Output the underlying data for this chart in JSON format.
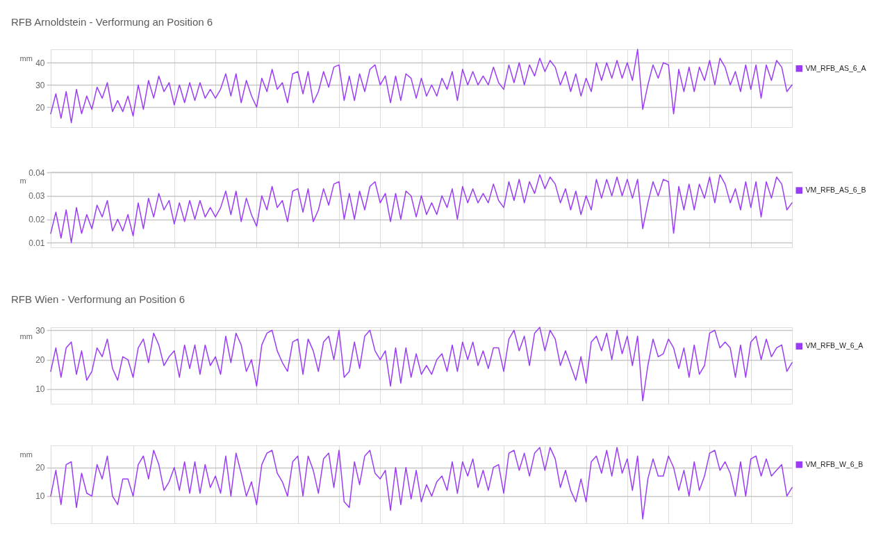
{
  "chart_data": [
    {
      "type": "line",
      "title": "RFB Arnoldstein - Verformung an Position 6",
      "ylabel": "mm",
      "categories": [
        null,
        null,
        null,
        null,
        null,
        null,
        null,
        null,
        null,
        null,
        null,
        null,
        null,
        null,
        null,
        null,
        null,
        null,
        null,
        null,
        null,
        null,
        null,
        null,
        null,
        null,
        null,
        null,
        null,
        null,
        null,
        null,
        null,
        null,
        null,
        null,
        null,
        null,
        null,
        null,
        null,
        null,
        null,
        null,
        null,
        null,
        null,
        null,
        null,
        null,
        null,
        null,
        null,
        null,
        null,
        null,
        null,
        null,
        null,
        null,
        null,
        null,
        null,
        null,
        null,
        null,
        null,
        null,
        null,
        null,
        null,
        null,
        null,
        null,
        null,
        null,
        null,
        null,
        null,
        null,
        null,
        null,
        null,
        null,
        null,
        null,
        null,
        null,
        null,
        null,
        null,
        null,
        null,
        null,
        null,
        null,
        null,
        null,
        null,
        null,
        null,
        null,
        null,
        null,
        null,
        null,
        null,
        null,
        null,
        null,
        null,
        null,
        null,
        null,
        null,
        null,
        null,
        null,
        null,
        null,
        null,
        null,
        null,
        null,
        null,
        null,
        null,
        null,
        null,
        null,
        null,
        null,
        null,
        null,
        null,
        null,
        null,
        null,
        null,
        null,
        null,
        null,
        null,
        null,
        null
      ],
      "series": [
        {
          "name": "VM_RFB_AS_6_A",
          "color": "#9b3cf5",
          "values": [
            17,
            26,
            15,
            27,
            13,
            28,
            17,
            25,
            19,
            29,
            24,
            31,
            18,
            23,
            18,
            25,
            16,
            30,
            19,
            32,
            24,
            34,
            27,
            31,
            21,
            30,
            22,
            31,
            23,
            31,
            24,
            28,
            24,
            28,
            35,
            25,
            35,
            22,
            32,
            25,
            20,
            33,
            27,
            37,
            28,
            31,
            22,
            35,
            36,
            26,
            36,
            22,
            27,
            36,
            29,
            38,
            39,
            23,
            34,
            23,
            35,
            27,
            37,
            39,
            30,
            34,
            22,
            34,
            23,
            35,
            33,
            24,
            33,
            25,
            30,
            25,
            33,
            28,
            36,
            23,
            37,
            30,
            36,
            30,
            34,
            30,
            38,
            31,
            28,
            39,
            31,
            40,
            30,
            39,
            34,
            42,
            36,
            41,
            38,
            30,
            36,
            27,
            35,
            25,
            33,
            27,
            40,
            32,
            40,
            33,
            41,
            33,
            40,
            32,
            46,
            19,
            30,
            39,
            33,
            40,
            39,
            17,
            37,
            27,
            38,
            27,
            38,
            32,
            41,
            30,
            42,
            38,
            30,
            36,
            27,
            39,
            28,
            39,
            24,
            39,
            32,
            41,
            38,
            27,
            30
          ]
        }
      ],
      "ylim": [
        11,
        46
      ],
      "yticks": [
        20,
        30,
        40
      ],
      "grid": true,
      "legend": "right",
      "tick_labels": "y"
    },
    {
      "type": "line",
      "ylabel": "m",
      "categories": [
        null,
        null,
        null,
        null,
        null,
        null,
        null,
        null,
        null,
        null,
        null,
        null,
        null,
        null,
        null,
        null,
        null,
        null,
        null,
        null,
        null,
        null,
        null,
        null,
        null,
        null,
        null,
        null,
        null,
        null,
        null,
        null,
        null,
        null,
        null,
        null,
        null,
        null,
        null,
        null,
        null,
        null,
        null,
        null,
        null,
        null,
        null,
        null,
        null,
        null,
        null,
        null,
        null,
        null,
        null,
        null,
        null,
        null,
        null,
        null,
        null,
        null,
        null,
        null,
        null,
        null,
        null,
        null,
        null,
        null,
        null,
        null,
        null,
        null,
        null,
        null,
        null,
        null,
        null,
        null,
        null,
        null,
        null,
        null,
        null,
        null,
        null,
        null,
        null,
        null,
        null,
        null,
        null,
        null,
        null,
        null,
        null,
        null,
        null,
        null,
        null,
        null,
        null,
        null,
        null,
        null,
        null,
        null,
        null,
        null,
        null,
        null,
        null,
        null,
        null,
        null,
        null,
        null,
        null,
        null,
        null,
        null,
        null,
        null,
        null,
        null,
        null,
        null,
        null,
        null,
        null,
        null,
        null,
        null,
        null,
        null,
        null,
        null,
        null,
        null,
        null,
        null,
        null,
        null,
        null
      ],
      "series": [
        {
          "name": "VM_RFB_AS_6_B",
          "color": "#9b3cf5",
          "values": [
            0.014,
            0.023,
            0.012,
            0.024,
            0.01,
            0.025,
            0.014,
            0.022,
            0.016,
            0.026,
            0.021,
            0.028,
            0.015,
            0.02,
            0.015,
            0.022,
            0.013,
            0.027,
            0.016,
            0.029,
            0.021,
            0.031,
            0.024,
            0.028,
            0.018,
            0.027,
            0.019,
            0.028,
            0.02,
            0.028,
            0.021,
            0.025,
            0.021,
            0.025,
            0.032,
            0.022,
            0.032,
            0.019,
            0.029,
            0.022,
            0.017,
            0.03,
            0.024,
            0.034,
            0.025,
            0.028,
            0.019,
            0.032,
            0.033,
            0.023,
            0.033,
            0.019,
            0.024,
            0.033,
            0.026,
            0.035,
            0.036,
            0.02,
            0.031,
            0.02,
            0.032,
            0.024,
            0.034,
            0.036,
            0.027,
            0.031,
            0.019,
            0.031,
            0.02,
            0.032,
            0.03,
            0.021,
            0.03,
            0.022,
            0.027,
            0.022,
            0.03,
            0.025,
            0.033,
            0.02,
            0.034,
            0.027,
            0.033,
            0.027,
            0.031,
            0.027,
            0.035,
            0.028,
            0.025,
            0.036,
            0.028,
            0.037,
            0.027,
            0.036,
            0.031,
            0.039,
            0.033,
            0.038,
            0.035,
            0.027,
            0.033,
            0.024,
            0.032,
            0.022,
            0.03,
            0.024,
            0.037,
            0.029,
            0.037,
            0.03,
            0.038,
            0.03,
            0.037,
            0.029,
            0.037,
            0.016,
            0.027,
            0.036,
            0.03,
            0.037,
            0.036,
            0.014,
            0.034,
            0.024,
            0.035,
            0.024,
            0.035,
            0.029,
            0.038,
            0.027,
            0.039,
            0.035,
            0.027,
            0.033,
            0.024,
            0.036,
            0.025,
            0.036,
            0.021,
            0.036,
            0.029,
            0.038,
            0.035,
            0.024,
            0.027
          ]
        }
      ],
      "ylim": [
        0.008,
        0.0403
      ],
      "yticks": [
        0.01,
        0.02,
        0.03,
        0.04
      ],
      "grid": true,
      "legend": "right",
      "tick_labels": "y"
    },
    {
      "type": "line",
      "title": "RFB Wien - Verformung an Position 6",
      "ylabel": "mm",
      "categories": [
        null,
        null,
        null,
        null,
        null,
        null,
        null,
        null,
        null,
        null,
        null,
        null,
        null,
        null,
        null,
        null,
        null,
        null,
        null,
        null,
        null,
        null,
        null,
        null,
        null,
        null,
        null,
        null,
        null,
        null,
        null,
        null,
        null,
        null,
        null,
        null,
        null,
        null,
        null,
        null,
        null,
        null,
        null,
        null,
        null,
        null,
        null,
        null,
        null,
        null,
        null,
        null,
        null,
        null,
        null,
        null,
        null,
        null,
        null,
        null,
        null,
        null,
        null,
        null,
        null,
        null,
        null,
        null,
        null,
        null,
        null,
        null,
        null,
        null,
        null,
        null,
        null,
        null,
        null,
        null,
        null,
        null,
        null,
        null,
        null,
        null,
        null,
        null,
        null,
        null,
        null,
        null,
        null,
        null,
        null,
        null,
        null,
        null,
        null,
        null,
        null,
        null,
        null,
        null,
        null,
        null,
        null,
        null,
        null,
        null,
        null,
        null,
        null,
        null,
        null,
        null,
        null,
        null,
        null,
        null,
        null,
        null,
        null,
        null,
        null,
        null,
        null,
        null,
        null,
        null,
        null,
        null,
        null,
        null,
        null,
        null,
        null,
        null,
        null,
        null,
        null,
        null,
        null,
        null,
        null
      ],
      "series": [
        {
          "name": "VM_RFB_W_6_A",
          "color": "#9b3cf5",
          "values": [
            16,
            24,
            14,
            24,
            26,
            15,
            23,
            13,
            16,
            24,
            21,
            27,
            17,
            13,
            21,
            20,
            14,
            24,
            27,
            19,
            29,
            25,
            18,
            21,
            23,
            14,
            25,
            17,
            25,
            15,
            25,
            18,
            21,
            15,
            28,
            19,
            29,
            25,
            16,
            20,
            11,
            25,
            29,
            30,
            23,
            19,
            16,
            26,
            27,
            15,
            27,
            23,
            16,
            26,
            28,
            20,
            30,
            14,
            16,
            26,
            17,
            28,
            30,
            23,
            20,
            23,
            11,
            24,
            12,
            24,
            14,
            22,
            15,
            18,
            15,
            20,
            22,
            16,
            25,
            16,
            26,
            20,
            26,
            18,
            23,
            17,
            24,
            24,
            16,
            27,
            30,
            23,
            28,
            18,
            29,
            31,
            23,
            30,
            27,
            18,
            23,
            18,
            13,
            21,
            12,
            26,
            28,
            23,
            29,
            20,
            30,
            22,
            28,
            18,
            28,
            6,
            18,
            27,
            21,
            22,
            27,
            24,
            17,
            24,
            14,
            25,
            15,
            18,
            29,
            30,
            24,
            26,
            24,
            14,
            25,
            14,
            26,
            28,
            20,
            27,
            21,
            24,
            25,
            16,
            19
          ]
        }
      ],
      "ylim": [
        5,
        31
      ],
      "yticks": [
        10,
        20,
        30
      ],
      "grid": true,
      "legend": "right",
      "tick_labels": "y"
    },
    {
      "type": "line",
      "ylabel": "mm",
      "categories": [
        null,
        null,
        null,
        null,
        null,
        null,
        null,
        null,
        null,
        null,
        null,
        null,
        null,
        null,
        null,
        null,
        null,
        null,
        null,
        null,
        null,
        null,
        null,
        null,
        null,
        null,
        null,
        null,
        null,
        null,
        null,
        null,
        null,
        null,
        null,
        null,
        null,
        null,
        null,
        null,
        null,
        null,
        null,
        null,
        null,
        null,
        null,
        null,
        null,
        null,
        null,
        null,
        null,
        null,
        null,
        null,
        null,
        null,
        null,
        null,
        null,
        null,
        null,
        null,
        null,
        null,
        null,
        null,
        null,
        null,
        null,
        null,
        null,
        null,
        null,
        null,
        null,
        null,
        null,
        null,
        null,
        null,
        null,
        null,
        null,
        null,
        null,
        null,
        null,
        null,
        null,
        null,
        null,
        null,
        null,
        null,
        null,
        null,
        null,
        null,
        null,
        null,
        null,
        null,
        null,
        null,
        null,
        null,
        null,
        null,
        null,
        null,
        null,
        null,
        null,
        null,
        null,
        null,
        null,
        null,
        null,
        null,
        null,
        null,
        null,
        null,
        null,
        null,
        null,
        null,
        null,
        null,
        null,
        null,
        null,
        null,
        null,
        null,
        null,
        null,
        null,
        null,
        null,
        null,
        null
      ],
      "series": [
        {
          "name": "VM_RFB_W_6_B",
          "color": "#9b3cf5",
          "values": [
            10,
            19,
            7,
            21,
            22,
            6,
            18,
            11,
            10,
            21,
            16,
            24,
            10,
            7,
            16,
            16,
            10,
            21,
            24,
            16,
            26,
            21,
            12,
            15,
            20,
            12,
            22,
            11,
            22,
            11,
            21,
            13,
            17,
            11,
            24,
            10,
            25,
            18,
            10,
            15,
            7,
            21,
            25,
            26,
            18,
            15,
            10,
            22,
            24,
            10,
            24,
            19,
            11,
            23,
            25,
            13,
            26,
            8,
            6,
            22,
            14,
            24,
            26,
            18,
            16,
            19,
            5,
            20,
            7,
            20,
            9,
            19,
            8,
            14,
            10,
            15,
            17,
            12,
            22,
            11,
            22,
            17,
            23,
            13,
            19,
            12,
            20,
            21,
            11,
            25,
            26,
            19,
            25,
            17,
            25,
            27,
            19,
            27,
            23,
            13,
            19,
            12,
            8,
            16,
            8,
            22,
            24,
            18,
            26,
            17,
            27,
            18,
            23,
            12,
            24,
            2,
            16,
            23,
            17,
            17,
            24,
            20,
            12,
            19,
            10,
            22,
            12,
            17,
            25,
            26,
            19,
            22,
            18,
            10,
            22,
            10,
            23,
            24,
            17,
            23,
            17,
            19,
            21,
            10,
            13
          ]
        }
      ],
      "ylim": [
        0.5,
        27.7
      ],
      "yticks": [
        10,
        20
      ],
      "grid": true,
      "legend": "right",
      "tick_labels": "y"
    }
  ]
}
